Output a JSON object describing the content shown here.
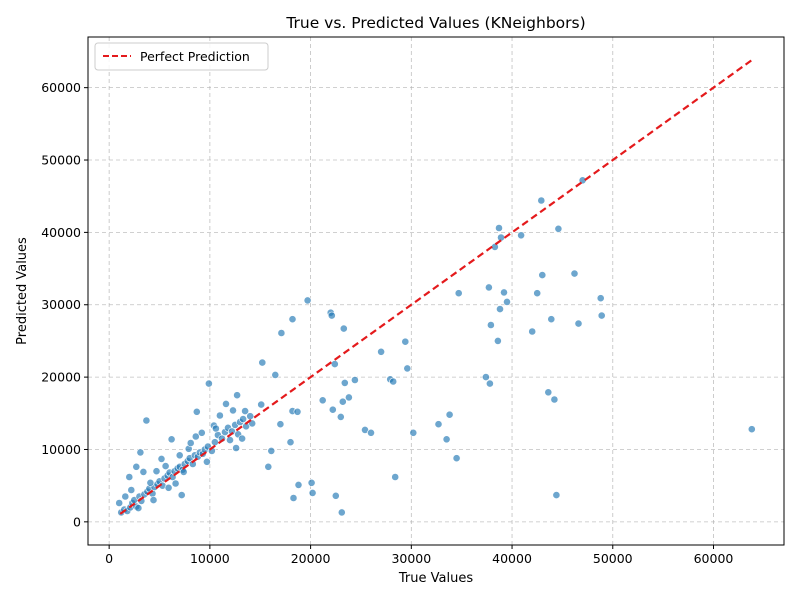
{
  "chart_data": {
    "type": "scatter",
    "title": "True vs. Predicted Values (KNeighbors)",
    "xlabel": "True Values",
    "ylabel": "Predicted Values",
    "xlim": [
      -2100,
      67000
    ],
    "ylim": [
      -3200,
      67000
    ],
    "xticks": [
      0,
      10000,
      20000,
      30000,
      40000,
      50000,
      60000
    ],
    "yticks": [
      0,
      10000,
      20000,
      30000,
      40000,
      50000,
      60000
    ],
    "grid": true,
    "legend": {
      "placement": "top-left",
      "entries": [
        "Perfect Prediction"
      ]
    },
    "colors": {
      "points": "#1f77b4",
      "reference_line": "#e41a1c",
      "grid": "#b0b0b0"
    },
    "reference_line": {
      "name": "Perfect Prediction",
      "x": [
        1100,
        63800
      ],
      "y": [
        1100,
        63800
      ],
      "style": "dashed"
    },
    "series": [
      {
        "points": [
          [
            1200,
            1300
          ],
          [
            1500,
            1700
          ],
          [
            1800,
            1500
          ],
          [
            2100,
            2000
          ],
          [
            2300,
            2600
          ],
          [
            2500,
            3000
          ],
          [
            2700,
            2100
          ],
          [
            3000,
            3500
          ],
          [
            3200,
            2900
          ],
          [
            3500,
            3800
          ],
          [
            3800,
            4200
          ],
          [
            4000,
            4600
          ],
          [
            4300,
            3900
          ],
          [
            4500,
            4800
          ],
          [
            4800,
            5200
          ],
          [
            5000,
            5600
          ],
          [
            5300,
            5000
          ],
          [
            5500,
            6000
          ],
          [
            5800,
            6400
          ],
          [
            6000,
            6800
          ],
          [
            6300,
            6200
          ],
          [
            6500,
            7000
          ],
          [
            6800,
            7400
          ],
          [
            7000,
            7600
          ],
          [
            7300,
            7200
          ],
          [
            7500,
            8000
          ],
          [
            7800,
            8400
          ],
          [
            8000,
            8800
          ],
          [
            8300,
            8000
          ],
          [
            8500,
            9200
          ],
          [
            8800,
            9000
          ],
          [
            9000,
            9600
          ],
          [
            9300,
            9400
          ],
          [
            9500,
            10000
          ],
          [
            9800,
            10400
          ],
          [
            10200,
            9800
          ],
          [
            10500,
            11000
          ],
          [
            10800,
            12000
          ],
          [
            11200,
            11500
          ],
          [
            11500,
            12400
          ],
          [
            11800,
            13000
          ],
          [
            12200,
            12500
          ],
          [
            12500,
            13400
          ],
          [
            12800,
            12100
          ],
          [
            13000,
            13800
          ],
          [
            13300,
            14200
          ],
          [
            13600,
            13200
          ],
          [
            14000,
            14600
          ],
          [
            1000,
            2600
          ],
          [
            1600,
            3500
          ],
          [
            2000,
            6200
          ],
          [
            2700,
            7600
          ],
          [
            3100,
            9600
          ],
          [
            3700,
            14000
          ],
          [
            2200,
            4400
          ],
          [
            3400,
            6900
          ],
          [
            4100,
            5400
          ],
          [
            4700,
            7000
          ],
          [
            5200,
            8700
          ],
          [
            5600,
            7700
          ],
          [
            6200,
            11400
          ],
          [
            7000,
            9200
          ],
          [
            7900,
            10100
          ],
          [
            8600,
            11800
          ],
          [
            9200,
            12300
          ],
          [
            9700,
            8300
          ],
          [
            10400,
            13300
          ],
          [
            11000,
            14700
          ],
          [
            11600,
            16300
          ],
          [
            12300,
            15400
          ],
          [
            12700,
            17500
          ],
          [
            13500,
            15300
          ],
          [
            6600,
            5300
          ],
          [
            7400,
            6900
          ],
          [
            5900,
            4700
          ],
          [
            4400,
            3000
          ],
          [
            2900,
            1900
          ],
          [
            7200,
            3700
          ],
          [
            8100,
            10900
          ],
          [
            9900,
            19100
          ],
          [
            8700,
            15200
          ],
          [
            10600,
            12900
          ],
          [
            12000,
            11300
          ],
          [
            12600,
            10200
          ],
          [
            13200,
            11500
          ],
          [
            14200,
            13600
          ],
          [
            15100,
            16200
          ],
          [
            15200,
            22000
          ],
          [
            16100,
            9800
          ],
          [
            16500,
            20300
          ],
          [
            15800,
            7600
          ],
          [
            17000,
            13500
          ],
          [
            17100,
            26100
          ],
          [
            18000,
            11000
          ],
          [
            18200,
            28000
          ],
          [
            18200,
            15300
          ],
          [
            18300,
            3300
          ],
          [
            18700,
            15200
          ],
          [
            18800,
            5100
          ],
          [
            19700,
            30600
          ],
          [
            20100,
            5400
          ],
          [
            20200,
            4000
          ],
          [
            21200,
            16800
          ],
          [
            22000,
            28900
          ],
          [
            22100,
            28500
          ],
          [
            22200,
            15500
          ],
          [
            22400,
            21800
          ],
          [
            22500,
            3600
          ],
          [
            23000,
            14500
          ],
          [
            23200,
            16600
          ],
          [
            23100,
            1300
          ],
          [
            23300,
            26700
          ],
          [
            23400,
            19200
          ],
          [
            23800,
            17200
          ],
          [
            24400,
            19600
          ],
          [
            25400,
            12700
          ],
          [
            26000,
            12300
          ],
          [
            27000,
            23500
          ],
          [
            27900,
            19700
          ],
          [
            28200,
            19400
          ],
          [
            28400,
            6200
          ],
          [
            29400,
            24900
          ],
          [
            29600,
            21200
          ],
          [
            30200,
            12300
          ],
          [
            32700,
            13500
          ],
          [
            33500,
            11400
          ],
          [
            33800,
            14800
          ],
          [
            34500,
            8800
          ],
          [
            34700,
            31600
          ],
          [
            37400,
            20000
          ],
          [
            37700,
            32400
          ],
          [
            37800,
            19100
          ],
          [
            37900,
            27200
          ],
          [
            38300,
            38000
          ],
          [
            38600,
            25000
          ],
          [
            38700,
            40600
          ],
          [
            38800,
            29400
          ],
          [
            38900,
            39300
          ],
          [
            39200,
            31700
          ],
          [
            39500,
            30400
          ],
          [
            40900,
            39600
          ],
          [
            42000,
            26300
          ],
          [
            42500,
            31600
          ],
          [
            42900,
            44400
          ],
          [
            43000,
            34100
          ],
          [
            43600,
            17900
          ],
          [
            43900,
            28000
          ],
          [
            44200,
            16900
          ],
          [
            44400,
            3700
          ],
          [
            44600,
            40500
          ],
          [
            46200,
            34300
          ],
          [
            46600,
            27400
          ],
          [
            47000,
            47200
          ],
          [
            48800,
            30900
          ],
          [
            48900,
            28500
          ],
          [
            63800,
            12800
          ]
        ]
      }
    ]
  }
}
